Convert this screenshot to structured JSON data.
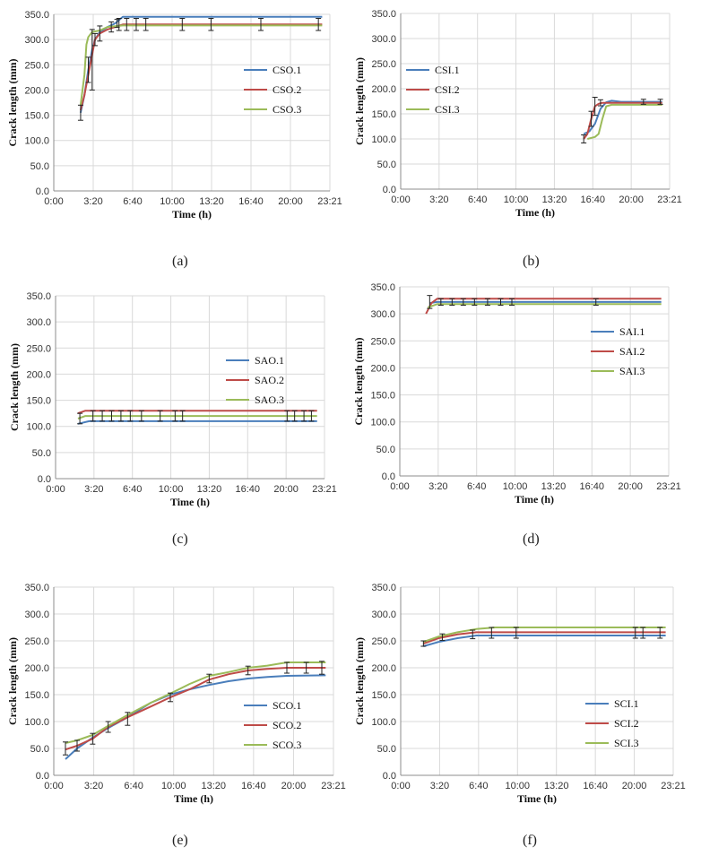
{
  "chart_data": [
    {
      "type": "line",
      "caption": "(a)",
      "xlabel": "Time (h)",
      "ylabel": "Crack length (mm)",
      "xlim": [
        0,
        1440
      ],
      "ylim": [
        0,
        350
      ],
      "xticks": [
        "0:00",
        "3:20",
        "6:40",
        "10:00",
        "13:20",
        "16:40",
        "20:00",
        "23:21"
      ],
      "yticks": [
        "0.0",
        "50.0",
        "100.0",
        "150.0",
        "200.0",
        "250.0",
        "300.0",
        "350.0"
      ],
      "legend_position": "middle-right",
      "series": [
        {
          "name": "CSO.1",
          "color": "#4a7ebb",
          "points": [
            [
              140,
              155
            ],
            [
              160,
              190
            ],
            [
              180,
              240
            ],
            [
              200,
              280
            ],
            [
              215,
              300
            ],
            [
              240,
              315
            ],
            [
              280,
              325
            ],
            [
              320,
              332
            ],
            [
              360,
              345
            ],
            [
              1400,
              345
            ]
          ],
          "errors": [
            [
              140,
              155,
              15
            ],
            [
              180,
              240,
              25
            ],
            [
              215,
              300,
              12
            ],
            [
              300,
              325,
              10
            ],
            [
              330,
              332,
              8
            ]
          ]
        },
        {
          "name": "CSO.2",
          "color": "#be4b48",
          "points": [
            [
              140,
              160
            ],
            [
              160,
              190
            ],
            [
              180,
              230
            ],
            [
              200,
              270
            ],
            [
              215,
              300
            ],
            [
              240,
              312
            ],
            [
              280,
              320
            ],
            [
              320,
              325
            ],
            [
              360,
              330
            ],
            [
              1400,
              330
            ]
          ],
          "errors": [
            [
              200,
              260,
              60
            ],
            [
              240,
              312,
              15
            ],
            [
              340,
              330,
              12
            ],
            [
              380,
              330,
              12
            ],
            [
              430,
              330,
              12
            ],
            [
              480,
              330,
              12
            ],
            [
              670,
              330,
              12
            ],
            [
              820,
              330,
              12
            ],
            [
              1080,
              330,
              12
            ],
            [
              1380,
              330,
              12
            ]
          ]
        },
        {
          "name": "CSO.3",
          "color": "#9bbb59",
          "points": [
            [
              140,
              170
            ],
            [
              160,
              230
            ],
            [
              170,
              290
            ],
            [
              180,
              305
            ],
            [
              200,
              315
            ],
            [
              240,
              318
            ],
            [
              280,
              325
            ],
            [
              360,
              328
            ],
            [
              1400,
              328
            ]
          ],
          "errors": []
        }
      ]
    },
    {
      "type": "line",
      "caption": "(b)",
      "xlabel": "Time (h)",
      "ylabel": "Crack length (mm)",
      "xlim": [
        0,
        1440
      ],
      "ylim": [
        0,
        350
      ],
      "xticks": [
        "0:00",
        "3:20",
        "6:40",
        "10:00",
        "13:20",
        "16:40",
        "20:00",
        "23:21"
      ],
      "yticks": [
        "0.0",
        "50.0",
        "100.0",
        "150.0",
        "200.0",
        "250.0",
        "300.0",
        "350.0"
      ],
      "legend_position": "top-left",
      "series": [
        {
          "name": "CSI.1",
          "color": "#4a7ebb",
          "points": [
            [
              980,
              110
            ],
            [
              1010,
              115
            ],
            [
              1040,
              130
            ],
            [
              1070,
              160
            ],
            [
              1100,
              173
            ],
            [
              1130,
              176
            ],
            [
              1180,
              174
            ],
            [
              1400,
              174
            ]
          ],
          "errors": [
            [
              1300,
              174,
              5
            ]
          ]
        },
        {
          "name": "CSI.2",
          "color": "#be4b48",
          "points": [
            [
              980,
              100
            ],
            [
              1000,
              110
            ],
            [
              1020,
              140
            ],
            [
              1040,
              165
            ],
            [
              1060,
              170
            ],
            [
              1080,
              172
            ],
            [
              1400,
              172
            ]
          ],
          "errors": [
            [
              980,
              100,
              8
            ],
            [
              1020,
              140,
              15
            ],
            [
              1040,
              165,
              18
            ],
            [
              1070,
              172,
              6
            ],
            [
              1390,
              174,
              5
            ]
          ]
        },
        {
          "name": "CSI.3",
          "color": "#9bbb59",
          "points": [
            [
              1000,
              100
            ],
            [
              1040,
              104
            ],
            [
              1060,
              110
            ],
            [
              1080,
              140
            ],
            [
              1100,
              165
            ],
            [
              1130,
              168
            ],
            [
              1400,
              168
            ]
          ],
          "errors": []
        }
      ]
    },
    {
      "type": "line",
      "caption": "(c)",
      "xlabel": "Time (h)",
      "ylabel": "Crack length (mm)",
      "xlim": [
        0,
        1440
      ],
      "ylim": [
        0,
        350
      ],
      "xticks": [
        "0:00",
        "3:20",
        "6:40",
        "10:00",
        "13:20",
        "16:40",
        "20:00",
        "23:21"
      ],
      "yticks": [
        "0.0",
        "50.0",
        "100.0",
        "150.0",
        "200.0",
        "250.0",
        "300.0",
        "350.0"
      ],
      "legend_position": "top-right",
      "series": [
        {
          "name": "SAO.1",
          "color": "#4a7ebb",
          "points": [
            [
              120,
              105
            ],
            [
              180,
              110
            ],
            [
              1400,
              110
            ]
          ],
          "errors": [
            [
              130,
              115,
              10
            ]
          ]
        },
        {
          "name": "SAO.2",
          "color": "#be4b48",
          "points": [
            [
              120,
              125
            ],
            [
              160,
              130
            ],
            [
              1400,
              130
            ]
          ],
          "errors": []
        },
        {
          "name": "SAO.3",
          "color": "#9bbb59",
          "points": [
            [
              120,
              115
            ],
            [
              160,
              120
            ],
            [
              1400,
              120
            ]
          ],
          "errors": [
            [
              200,
              120,
              10
            ],
            [
              250,
              120,
              10
            ],
            [
              300,
              120,
              10
            ],
            [
              350,
              120,
              10
            ],
            [
              400,
              120,
              10
            ],
            [
              460,
              120,
              10
            ],
            [
              560,
              120,
              10
            ],
            [
              640,
              120,
              10
            ],
            [
              680,
              120,
              10
            ],
            [
              1240,
              120,
              10
            ],
            [
              1280,
              120,
              10
            ],
            [
              1330,
              120,
              10
            ],
            [
              1370,
              120,
              10
            ]
          ]
        }
      ]
    },
    {
      "type": "line",
      "caption": "(d)",
      "xlabel": "Time (h)",
      "ylabel": "Crack length (mm)",
      "xlim": [
        0,
        1440
      ],
      "ylim": [
        0,
        350
      ],
      "xticks": [
        "0:00",
        "3:20",
        "6:40",
        "10:00",
        "13:20",
        "16:40",
        "20:00",
        "23:21"
      ],
      "yticks": [
        "0.0",
        "50.0",
        "100.0",
        "150.0",
        "200.0",
        "250.0",
        "300.0",
        "350.0"
      ],
      "legend_position": "middle-right",
      "series": [
        {
          "name": "SAI.1",
          "color": "#4a7ebb",
          "points": [
            [
              160,
              320
            ],
            [
              200,
              322
            ],
            [
              1400,
              322
            ]
          ],
          "errors": [
            [
              160,
              322,
              12
            ],
            [
              220,
              322,
              6
            ],
            [
              280,
              322,
              6
            ],
            [
              340,
              322,
              6
            ],
            [
              400,
              322,
              6
            ],
            [
              470,
              322,
              6
            ],
            [
              540,
              322,
              6
            ],
            [
              600,
              322,
              6
            ],
            [
              1050,
              322,
              6
            ]
          ]
        },
        {
          "name": "SAI.2",
          "color": "#be4b48",
          "points": [
            [
              140,
              300
            ],
            [
              170,
              320
            ],
            [
              200,
              328
            ],
            [
              1400,
              328
            ]
          ],
          "errors": []
        },
        {
          "name": "SAI.3",
          "color": "#9bbb59",
          "points": [
            [
              150,
              312
            ],
            [
              200,
              318
            ],
            [
              1400,
              318
            ]
          ],
          "errors": []
        }
      ]
    },
    {
      "type": "line",
      "caption": "(e)",
      "xlabel": "Time (h)",
      "ylabel": "Crack length (mm)",
      "xlim": [
        0,
        1440
      ],
      "ylim": [
        0,
        350
      ],
      "xticks": [
        "0:00",
        "3:20",
        "6:40",
        "10:00",
        "13:20",
        "16:40",
        "20:00",
        "23:21"
      ],
      "yticks": [
        "0.0",
        "50.0",
        "100.0",
        "150.0",
        "200.0",
        "250.0",
        "300.0",
        "350.0"
      ],
      "legend_position": "bottom-right",
      "series": [
        {
          "name": "SCO.1",
          "color": "#4a7ebb",
          "points": [
            [
              60,
              30
            ],
            [
              120,
              50
            ],
            [
              200,
              70
            ],
            [
              280,
              88
            ],
            [
              380,
              108
            ],
            [
              500,
              135
            ],
            [
              600,
              150
            ],
            [
              700,
              160
            ],
            [
              800,
              168
            ],
            [
              900,
              175
            ],
            [
              1000,
              180
            ],
            [
              1100,
              183
            ],
            [
              1200,
              185
            ],
            [
              1400,
              186
            ]
          ],
          "errors": [
            [
              60,
              50,
              12
            ],
            [
              120,
              55,
              10
            ],
            [
              200,
              68,
              10
            ],
            [
              280,
              90,
              10
            ],
            [
              380,
              105,
              12
            ],
            [
              600,
              145,
              8
            ]
          ]
        },
        {
          "name": "SCO.2",
          "color": "#be4b48",
          "points": [
            [
              60,
              48
            ],
            [
              120,
              55
            ],
            [
              200,
              68
            ],
            [
              280,
              90
            ],
            [
              380,
              108
            ],
            [
              500,
              128
            ],
            [
              600,
              145
            ],
            [
              700,
              160
            ],
            [
              800,
              178
            ],
            [
              900,
              188
            ],
            [
              1000,
              195
            ],
            [
              1100,
              198
            ],
            [
              1200,
              200
            ],
            [
              1400,
              200
            ]
          ],
          "errors": [
            [
              800,
              180,
              8
            ],
            [
              1000,
              195,
              8
            ],
            [
              1200,
              200,
              10
            ],
            [
              1300,
              200,
              10
            ],
            [
              1380,
              200,
              12
            ]
          ]
        },
        {
          "name": "SCO.3",
          "color": "#9bbb59",
          "points": [
            [
              60,
              60
            ],
            [
              120,
              65
            ],
            [
              200,
              75
            ],
            [
              280,
              92
            ],
            [
              380,
              112
            ],
            [
              500,
              135
            ],
            [
              600,
              152
            ],
            [
              700,
              170
            ],
            [
              800,
              185
            ],
            [
              900,
              192
            ],
            [
              1000,
              200
            ],
            [
              1100,
              204
            ],
            [
              1200,
              210
            ],
            [
              1400,
              210
            ]
          ],
          "errors": []
        }
      ]
    },
    {
      "type": "line",
      "caption": "(f)",
      "xlabel": "Time (h)",
      "ylabel": "Crack length (mm)",
      "xlim": [
        0,
        1440
      ],
      "ylim": [
        0,
        350
      ],
      "xticks": [
        "0:00",
        "3:20",
        "6:40",
        "10:00",
        "13:20",
        "16:40",
        "20:00",
        "23:21"
      ],
      "yticks": [
        "0.0",
        "50.0",
        "100.0",
        "150.0",
        "200.0",
        "250.0",
        "300.0",
        "350.0"
      ],
      "legend_position": "bottom-right",
      "series": [
        {
          "name": "SCI.1",
          "color": "#4a7ebb",
          "points": [
            [
              120,
              240
            ],
            [
              200,
              248
            ],
            [
              300,
              255
            ],
            [
              400,
              260
            ],
            [
              1400,
              260
            ]
          ],
          "errors": [
            [
              120,
              245,
              5
            ],
            [
              220,
              257,
              6
            ],
            [
              380,
              262,
              8
            ],
            [
              480,
              265,
              10
            ],
            [
              610,
              265,
              10
            ],
            [
              1240,
              265,
              10
            ],
            [
              1280,
              265,
              10
            ],
            [
              1370,
              265,
              10
            ]
          ]
        },
        {
          "name": "SCI.2",
          "color": "#be4b48",
          "points": [
            [
              120,
              245
            ],
            [
              200,
              255
            ],
            [
              300,
              262
            ],
            [
              400,
              266
            ],
            [
              1400,
              266
            ]
          ],
          "errors": []
        },
        {
          "name": "SCI.3",
          "color": "#9bbb59",
          "points": [
            [
              120,
              248
            ],
            [
              200,
              258
            ],
            [
              300,
              266
            ],
            [
              400,
              272
            ],
            [
              500,
              275
            ],
            [
              1400,
              275
            ]
          ],
          "errors": []
        }
      ]
    }
  ]
}
